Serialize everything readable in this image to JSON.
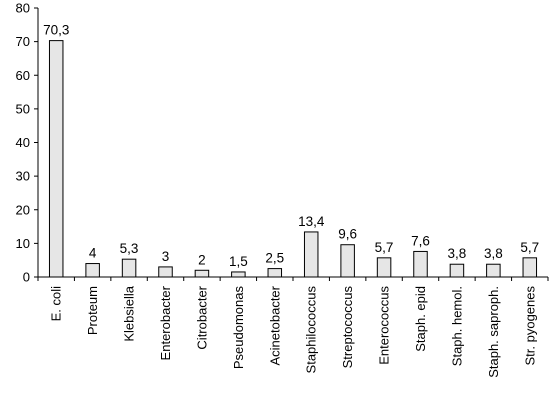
{
  "chart_data": {
    "type": "bar",
    "title": "",
    "xlabel": "",
    "ylabel": "",
    "ylim": [
      0,
      80
    ],
    "yticks": [
      0,
      10,
      20,
      30,
      40,
      50,
      60,
      70,
      80
    ],
    "grid": false,
    "categories": [
      "E. coli",
      "Proteum",
      "Klebsiella",
      "Enterobacter",
      "Citrobacter",
      "Pseudomonas",
      "Acinetobacter",
      "Staphilococcus",
      "Streptococcus",
      "Enterococcus",
      "Staph. epid",
      "Staph. hemol.",
      "Staph. saproph.",
      "Str. pyogenes"
    ],
    "values": [
      70.3,
      4,
      5.3,
      3,
      2,
      1.5,
      2.5,
      13.4,
      9.6,
      5.7,
      7.6,
      3.8,
      3.8,
      5.7
    ],
    "data_labels": [
      "70,3",
      "4",
      "5,3",
      "3",
      "2",
      "1,5",
      "2,5",
      "13,4",
      "9,6",
      "5,7",
      "7,6",
      "3,8",
      "3,8",
      "5,7"
    ],
    "colors": {
      "bar_fill": "#e6e6e6",
      "bar_stroke": "#000000",
      "axis": "#000000"
    }
  }
}
